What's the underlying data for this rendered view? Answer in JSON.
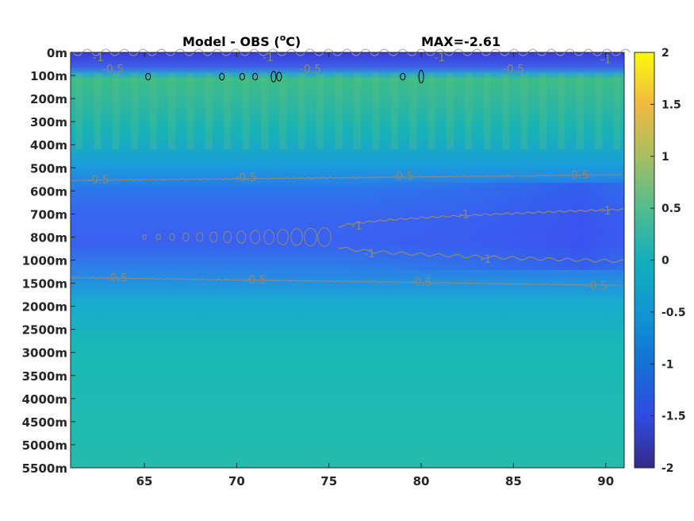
{
  "chart_data": {
    "type": "heatmap",
    "title": "Model - OBS (°C)",
    "title_main": "Model - OBS (",
    "title_sup": "o",
    "title_tail": "C)",
    "annotation": "MAX=-2.61",
    "x_ticks": [
      "65",
      "70",
      "75",
      "80",
      "85",
      "90"
    ],
    "x_tick_values": [
      65,
      70,
      75,
      80,
      85,
      90
    ],
    "xlim": [
      61,
      91
    ],
    "y_tick_labels": [
      "0m",
      "100m",
      "200m",
      "300m",
      "400m",
      "500m",
      "600m",
      "700m",
      "800m",
      "1000m",
      "1500m",
      "2000m",
      "2500m",
      "3000m",
      "3500m",
      "4000m",
      "4500m",
      "5000m",
      "5500m"
    ],
    "colorbar": {
      "ticks": [
        "2",
        "1.5",
        "1",
        "0.5",
        "0",
        "-0.5",
        "-1",
        "-1.5",
        "-2"
      ],
      "range": [
        -2,
        2
      ],
      "colormap": "parula"
    },
    "contour_labels": {
      "upper_-0.5": [
        {
          "text": "-0.5",
          "x": 62.5,
          "level": 5.5
        },
        {
          "text": "-0.5",
          "x": 70.5,
          "level": 5.4
        },
        {
          "text": "-0.5",
          "x": 79.0,
          "level": 5.35
        },
        {
          "text": "-0.5",
          "x": 88.5,
          "level": 5.3
        }
      ],
      "minus_1_upper": [
        {
          "text": "-1",
          "x": 76.5,
          "level": 7.5
        },
        {
          "text": "-1",
          "x": 82.3,
          "level": 7.0
        },
        {
          "text": "-1",
          "x": 90.0,
          "level": 6.85
        }
      ],
      "minus_1_lower": [
        {
          "text": "-1",
          "x": 77.2,
          "level": 8.7
        },
        {
          "text": "-1",
          "x": 83.5,
          "level": 8.95
        }
      ],
      "lower_-0.5": [
        {
          "text": "-0.5",
          "x": 63.5,
          "level": 9.75
        },
        {
          "text": "-0.5",
          "x": 71.0,
          "level": 9.85
        },
        {
          "text": "-0.5",
          "x": 80.0,
          "level": 9.95
        },
        {
          "text": "-0.5",
          "x": 89.5,
          "level": 10.1
        }
      ],
      "surface": [
        {
          "text": "-1",
          "x": 62.5,
          "level": 0.2
        },
        {
          "text": "-0.5",
          "x": 63.3,
          "level": 0.7
        },
        {
          "text": "-1",
          "x": 71.7,
          "level": 0.2
        },
        {
          "text": "-0.5",
          "x": 74.0,
          "level": 0.7
        },
        {
          "text": "-1",
          "x": 81.0,
          "level": 0.2
        },
        {
          "text": "-0.5",
          "x": 85.0,
          "level": 0.7
        },
        {
          "text": "-1",
          "x": 90.0,
          "level": 0.3
        }
      ]
    }
  }
}
